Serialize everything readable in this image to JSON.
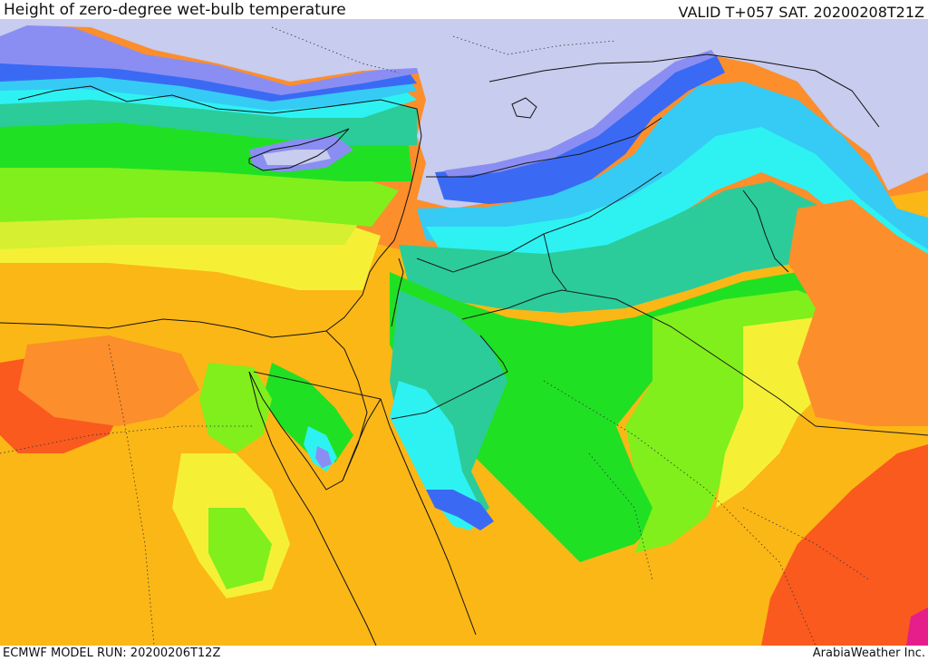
{
  "header": {
    "title": "Height of zero-degree wet-bulb temperature",
    "valid": "VALID T+057 SAT. 20200208T21Z"
  },
  "footer": {
    "model_run": "ECMWF MODEL RUN: 20200206T12Z",
    "credit": "ArabiaWeather Inc."
  },
  "palette": {
    "below_freezing": "#c8ccee",
    "violet": "#8a8ef2",
    "royal_blue": "#3a6af4",
    "sky_blue": "#36cbf5",
    "cyan": "#2ef2f2",
    "teal": "#2bcc9a",
    "green": "#20e024",
    "lime": "#80ef1c",
    "yellow_green": "#d6ef30",
    "yellow": "#f5f036",
    "amber": "#fbb716",
    "orange": "#fc8e2c",
    "red_orange": "#fa5a1e",
    "magenta": "#e51e8c",
    "coastline": "#111111",
    "borders": "#1a1a1a"
  }
}
